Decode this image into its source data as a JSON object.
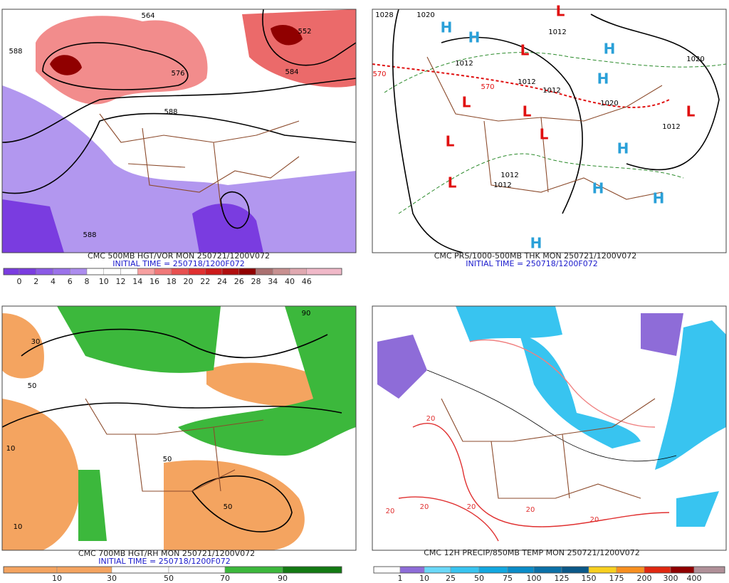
{
  "panels": [
    {
      "caption": "CMC 500MB HGT/VOR MON 250721/1200V072",
      "initial_time": "INITIAL TIME = 250718/1200F072",
      "legend": [
        {
          "label": "0",
          "color": "#7a3ce0"
        },
        {
          "label": "2",
          "color": "#8b5ae6"
        },
        {
          "label": "4",
          "color": "#9a72ea"
        },
        {
          "label": "6",
          "color": "#ac8cee"
        },
        {
          "label": "8",
          "color": "#ffffff"
        },
        {
          "label": "10",
          "color": "#ffffff"
        },
        {
          "label": "12",
          "color": "#ffffff"
        },
        {
          "label": "14",
          "color": "#f7a0a0"
        },
        {
          "label": "16",
          "color": "#f07878"
        },
        {
          "label": "18",
          "color": "#e85050"
        },
        {
          "label": "20",
          "color": "#e03030"
        },
        {
          "label": "22",
          "color": "#cc1a1a"
        },
        {
          "label": "24",
          "color": "#b00e0e"
        },
        {
          "label": "26",
          "color": "#900000"
        },
        {
          "label": "28",
          "color": "#aa7070"
        },
        {
          "label": "34",
          "color": "#c89090"
        },
        {
          "label": "40",
          "color": "#e0a8b0"
        },
        {
          "label": "46",
          "color": "#f0b8c8"
        }
      ],
      "labels": [
        {
          "text": "564",
          "color": "#000000"
        },
        {
          "text": "552",
          "color": "#000000"
        },
        {
          "text": "588",
          "color": "#000000"
        },
        {
          "text": "576",
          "color": "#000000"
        },
        {
          "text": "584",
          "color": "#000000"
        },
        {
          "text": "588",
          "color": "#000000"
        },
        {
          "text": "588",
          "color": "#000000"
        }
      ]
    },
    {
      "caption": "CMC PRS/1000-500MB THK MON 250721/1200V072",
      "initial_time": "INITIAL TIME = 250718/1200F072",
      "legend": [],
      "labels": [
        {
          "text": "H",
          "color": "#2aa0d8"
        },
        {
          "text": "H",
          "color": "#2aa0d8"
        },
        {
          "text": "H",
          "color": "#2aa0d8"
        },
        {
          "text": "H",
          "color": "#2aa0d8"
        },
        {
          "text": "H",
          "color": "#2aa0d8"
        },
        {
          "text": "H",
          "color": "#2aa0d8"
        },
        {
          "text": "H",
          "color": "#2aa0d8"
        },
        {
          "text": "H",
          "color": "#2aa0d8"
        },
        {
          "text": "L",
          "color": "#e01010"
        },
        {
          "text": "L",
          "color": "#e01010"
        },
        {
          "text": "L",
          "color": "#e01010"
        },
        {
          "text": "L",
          "color": "#e01010"
        },
        {
          "text": "L",
          "color": "#e01010"
        },
        {
          "text": "L",
          "color": "#e01010"
        },
        {
          "text": "L",
          "color": "#e01010"
        },
        {
          "text": "L",
          "color": "#e01010"
        },
        {
          "text": "1012",
          "color": "#000000"
        },
        {
          "text": "1012",
          "color": "#000000"
        },
        {
          "text": "1012",
          "color": "#000000"
        },
        {
          "text": "1012",
          "color": "#000000"
        },
        {
          "text": "1020",
          "color": "#000000"
        },
        {
          "text": "1012",
          "color": "#000000"
        },
        {
          "text": "1012",
          "color": "#000000"
        },
        {
          "text": "570",
          "color": "#e01010"
        },
        {
          "text": "570",
          "color": "#e01010"
        },
        {
          "text": "1020",
          "color": "#000000"
        },
        {
          "text": "1012",
          "color": "#000000"
        },
        {
          "text": "1028",
          "color": "#000000"
        },
        {
          "text": "1020",
          "color": "#000000"
        }
      ]
    },
    {
      "caption": "CMC 700MB HGT/RH MON 250721/1200V072",
      "initial_time": "INITIAL TIME = 250718/1200F072",
      "legend": [
        {
          "label": "10",
          "color": "#f4a460"
        },
        {
          "label": "30",
          "color": "#ffffff"
        },
        {
          "label": "50",
          "color": "#ffffff"
        },
        {
          "label": "70",
          "color": "#3cb83c"
        },
        {
          "label": "90",
          "color": "#127a12"
        }
      ],
      "labels": [
        {
          "text": "50",
          "color": "#000000"
        },
        {
          "text": "10",
          "color": "#000000"
        },
        {
          "text": "30",
          "color": "#000000"
        },
        {
          "text": "90",
          "color": "#000000"
        },
        {
          "text": "50",
          "color": "#000000"
        },
        {
          "text": "10",
          "color": "#000000"
        },
        {
          "text": "50",
          "color": "#000000"
        }
      ]
    },
    {
      "caption": "CMC 12H PRECIP/850MB TEMP MON 250721/1200V072",
      "initial_time": "",
      "legend": [
        {
          "label": "1",
          "color": "#8e6cd8"
        },
        {
          "label": "10",
          "color": "#6ad8f8"
        },
        {
          "label": "25",
          "color": "#38c4f0"
        },
        {
          "label": "50",
          "color": "#12a8e0"
        },
        {
          "label": "75",
          "color": "#0a8cc8"
        },
        {
          "label": "100",
          "color": "#0a70a8"
        },
        {
          "label": "125",
          "color": "#0a5888"
        },
        {
          "label": "150",
          "color": "#f8d020"
        },
        {
          "label": "175",
          "color": "#f89020"
        },
        {
          "label": "200",
          "color": "#e02810"
        },
        {
          "label": "300",
          "color": "#900000"
        },
        {
          "label": "400",
          "color": "#b09098"
        }
      ],
      "labels": [
        {
          "text": "20",
          "color": "#e03030"
        },
        {
          "text": "20",
          "color": "#e03030"
        },
        {
          "text": "20",
          "color": "#e03030"
        },
        {
          "text": "20",
          "color": "#e03030"
        },
        {
          "text": "20",
          "color": "#e03030"
        },
        {
          "text": "20",
          "color": "#e03030"
        }
      ]
    }
  ]
}
